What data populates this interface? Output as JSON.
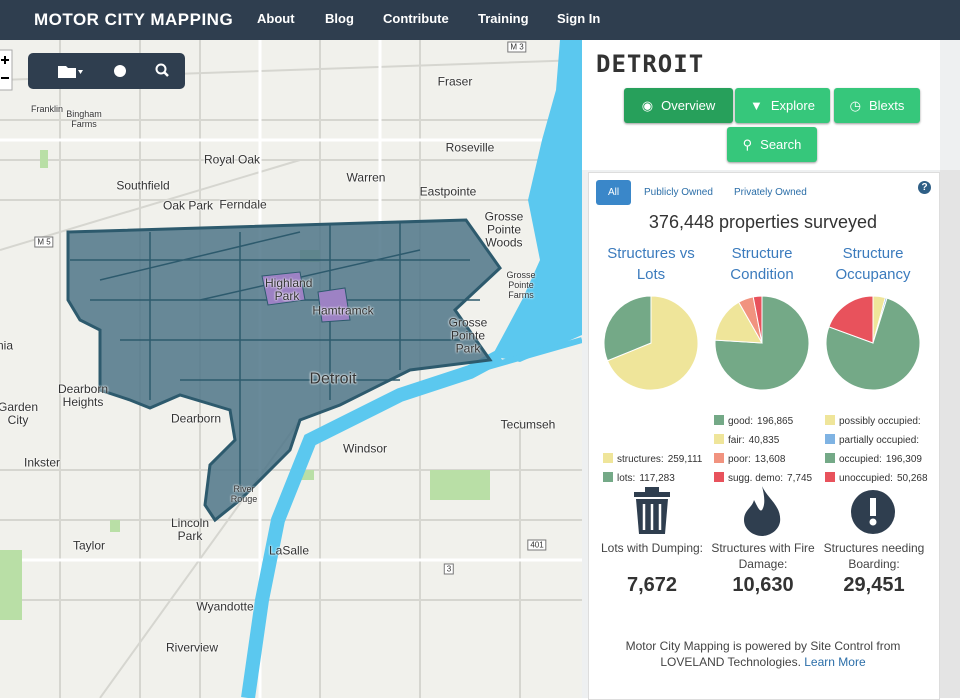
{
  "nav": {
    "brand": "MOTOR CITY MAPPING",
    "links": [
      "About",
      "Blog",
      "Contribute",
      "Training",
      "Sign In"
    ]
  },
  "map": {
    "labels": [
      "Fraser",
      "Roseville",
      "Royal Oak",
      "Warren",
      "Eastpointe",
      "Southfield",
      "Oak Park",
      "Ferndale",
      "Franklin",
      "Bingham Farms",
      "Grosse Pointe Woods",
      "Grosse Pointe Farms",
      "Highland Park",
      "Hamtramck",
      "Grosse Pointe Park",
      "Detroit",
      "Dearborn Heights",
      "Dearborn",
      "Garden City",
      "Inkster",
      "Windsor",
      "Tecumseh",
      "River Rouge",
      "Lincoln Park",
      "Taylor",
      "LaSalle",
      "Wyandotte",
      "Riverview",
      "nia"
    ],
    "shields": [
      "M 3",
      "M 5",
      "401",
      "3"
    ]
  },
  "panel": {
    "title": "DETROIT",
    "buttons": [
      "Overview",
      "Explore",
      "Blexts",
      "Search"
    ],
    "tabs": [
      "All",
      "Publicly Owned",
      "Privately Owned"
    ],
    "help": "?",
    "summary": "376,448 properties surveyed"
  },
  "chart_data": [
    {
      "type": "pie",
      "title": "Structures vs Lots",
      "categories": [
        "structures:",
        "lots:"
      ],
      "values": [
        259111,
        117283
      ],
      "value_labels": [
        "259,111",
        "117,283"
      ],
      "colors": [
        "#efe59a",
        "#74a987"
      ]
    },
    {
      "type": "pie",
      "title": "Structure Condition",
      "categories": [
        "good:",
        "fair:",
        "poor:",
        "sugg. demo:"
      ],
      "values": [
        196865,
        40835,
        13608,
        7745
      ],
      "value_labels": [
        "196,865",
        "40,835",
        "13,608",
        "7,745"
      ],
      "colors": [
        "#74a987",
        "#efe59a",
        "#f1937f",
        "#e8525c"
      ]
    },
    {
      "type": "pie",
      "title": "Structure Occupancy",
      "categories": [
        "possibly occupied:",
        "partially occupied:",
        "occupied:",
        "unoccupied:"
      ],
      "values": [
        11000,
        1500,
        196309,
        50268
      ],
      "value_labels": [
        null,
        null,
        "196,309",
        "50,268"
      ],
      "colors": [
        "#efe59a",
        "#7fb3e3",
        "#74a987",
        "#e8525c"
      ]
    }
  ],
  "stats": [
    {
      "label": "Lots with Dumping:",
      "value": "7,672"
    },
    {
      "label": "Structures with Fire Damage:",
      "value": "10,630"
    },
    {
      "label": "Structures needing Boarding:",
      "value": "29,451"
    }
  ],
  "footer": {
    "text": "Motor City Mapping is powered by Site Control from LOVELAND Technologies.",
    "link": "Learn More"
  }
}
